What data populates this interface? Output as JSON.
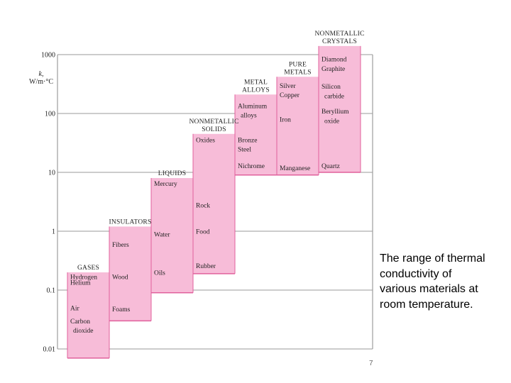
{
  "caption": "The range of thermal conductivity of various materials at room temperature.",
  "page_number": "7",
  "chart_data": {
    "type": "bar",
    "scale": "log",
    "ylabel": [
      "k,",
      "W/m·°C"
    ],
    "ylim": [
      0.01,
      1000
    ],
    "yticks": [
      {
        "value": 1000,
        "label": "1000"
      },
      {
        "value": 100,
        "label": "100"
      },
      {
        "value": 10,
        "label": "10"
      },
      {
        "value": 1,
        "label": "1"
      },
      {
        "value": 0.1,
        "label": "0.1"
      },
      {
        "value": 0.01,
        "label": "0.01"
      }
    ],
    "bar_color": "#f7bcd8",
    "edge_color": "#e0609c",
    "categories": [
      {
        "name": [
          "GASES"
        ],
        "min": 0.007,
        "max": 0.2,
        "items": [
          {
            "label": "Hydrogen",
            "value": 0.17
          },
          {
            "label": "Helium",
            "value": 0.135
          },
          {
            "label": "Air",
            "value": 0.05
          },
          {
            "label": "Carbon",
            "value": 0.03
          },
          {
            "label": "dioxide",
            "value": 0.021
          }
        ]
      },
      {
        "name": [
          "INSULATORS"
        ],
        "min": 0.03,
        "max": 1.2,
        "items": [
          {
            "label": "Fibers",
            "value": 0.6
          },
          {
            "label": "Wood",
            "value": 0.17
          },
          {
            "label": "Foams",
            "value": 0.048
          }
        ]
      },
      {
        "name": [
          "LIQUIDS"
        ],
        "min": 0.09,
        "max": 8,
        "items": [
          {
            "label": "Mercury",
            "value": 6.5
          },
          {
            "label": "Water",
            "value": 0.9
          },
          {
            "label": "Oils",
            "value": 0.2
          }
        ]
      },
      {
        "name": [
          "NONMETALLIC",
          "SOLIDS"
        ],
        "min": 0.19,
        "max": 45,
        "items": [
          {
            "label": "Oxides",
            "value": 36
          },
          {
            "label": "Rock",
            "value": 2.8
          },
          {
            "label": "Food",
            "value": 1.0
          },
          {
            "label": "Rubber",
            "value": 0.26
          }
        ]
      },
      {
        "name": [
          "METAL",
          "ALLOYS"
        ],
        "min": 9,
        "max": 210,
        "items": [
          {
            "label": "Aluminum",
            "value": 135
          },
          {
            "label": "alloys",
            "value": 95
          },
          {
            "label": "Bronze",
            "value": 36
          },
          {
            "label": "Steel",
            "value": 25
          },
          {
            "label": "Nichrome",
            "value": 13
          }
        ]
      },
      {
        "name": [
          "PURE",
          "METALS"
        ],
        "min": 9,
        "max": 420,
        "items": [
          {
            "label": "Silver",
            "value": 300
          },
          {
            "label": "Copper",
            "value": 210
          },
          {
            "label": "Iron",
            "value": 80
          },
          {
            "label": "Manganese",
            "value": 12
          }
        ]
      },
      {
        "name": [
          "NONMETALLIC",
          "CRYSTALS"
        ],
        "min": 10,
        "max": 1400,
        "items": [
          {
            "label": "Diamond",
            "value": 850
          },
          {
            "label": "Graphite",
            "value": 580
          },
          {
            "label": "Silicon",
            "value": 290
          },
          {
            "label": "carbide",
            "value": 200
          },
          {
            "label": "Beryllium",
            "value": 110
          },
          {
            "label": "oxide",
            "value": 76
          },
          {
            "label": "Quartz",
            "value": 13
          }
        ]
      }
    ]
  }
}
